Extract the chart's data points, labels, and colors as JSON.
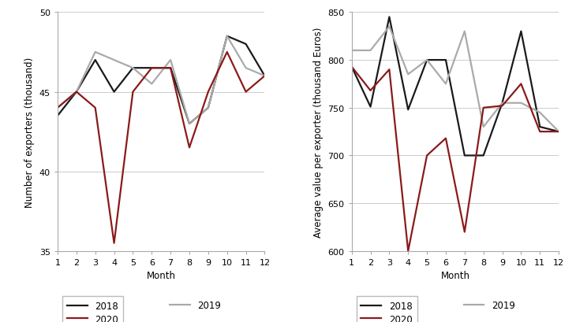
{
  "months": [
    1,
    2,
    3,
    4,
    5,
    6,
    7,
    8,
    9,
    10,
    11,
    12
  ],
  "exporters_2018": [
    43.5,
    45.0,
    47.0,
    45.0,
    46.5,
    46.5,
    46.5,
    43.0,
    44.0,
    48.5,
    48.0,
    46.0
  ],
  "exporters_2019": [
    44.0,
    45.0,
    47.5,
    47.0,
    46.5,
    45.5,
    47.0,
    43.0,
    44.0,
    48.5,
    46.5,
    46.0
  ],
  "exporters_2020": [
    44.0,
    45.0,
    44.0,
    35.5,
    45.0,
    46.5,
    46.5,
    41.5,
    45.0,
    47.5,
    45.0,
    46.0
  ],
  "avg_2018": [
    793,
    751,
    845,
    748,
    800,
    800,
    700,
    700,
    755,
    830,
    730,
    725
  ],
  "avg_2019": [
    810,
    810,
    835,
    785,
    800,
    775,
    830,
    730,
    755,
    755,
    745,
    725
  ],
  "avg_2020": [
    793,
    768,
    790,
    600,
    700,
    718,
    620,
    750,
    752,
    775,
    725,
    725
  ],
  "color_2018": "#1a1a1a",
  "color_2019": "#aaaaaa",
  "color_2020": "#8b1a1a",
  "ylabel_left": "Number of exporters (thousand)",
  "ylabel_right": "Average value per exporter (thousand Euros)",
  "xlabel": "Month",
  "ylim_left": [
    35,
    50
  ],
  "ylim_right": [
    600,
    850
  ],
  "yticks_left": [
    35,
    40,
    45,
    50
  ],
  "yticks_right": [
    600,
    650,
    700,
    750,
    800,
    850
  ],
  "xticks": [
    1,
    2,
    3,
    4,
    5,
    6,
    7,
    8,
    9,
    10,
    11,
    12
  ],
  "linewidth": 1.6,
  "grid_color": "#cccccc",
  "grid_lw": 0.7,
  "spine_color": "#aaaaaa",
  "tick_labelsize": 8,
  "axis_labelsize": 8.5,
  "legend_fontsize": 8.5
}
